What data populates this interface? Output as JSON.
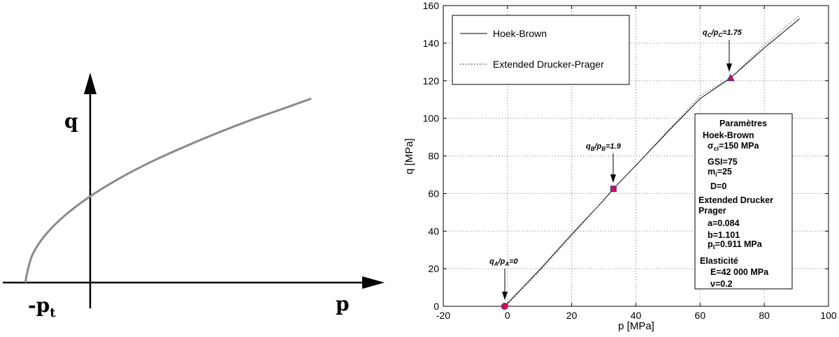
{
  "chart_data": [
    {
      "type": "line",
      "title": "",
      "xlabel": "p",
      "ylabel": "q",
      "intercept_label": "-p",
      "intercept_label_sub": "t",
      "series": [
        {
          "x": [
            -1.0,
            -0.9,
            -0.7,
            -0.4,
            0,
            0.5,
            1.0,
            1.5,
            2.0,
            2.5,
            3.0,
            3.4
          ],
          "y": [
            0,
            0.25,
            0.45,
            0.64,
            0.83,
            1.02,
            1.18,
            1.32,
            1.45,
            1.57,
            1.68,
            1.77
          ]
        }
      ]
    },
    {
      "type": "line",
      "title": "",
      "xlabel": "p [MPa]",
      "ylabel": "q [MPa]",
      "xlim": [
        -20,
        100
      ],
      "ylim": [
        0,
        160
      ],
      "xticks": [
        -20,
        0,
        20,
        40,
        60,
        80,
        100
      ],
      "yticks": [
        0,
        20,
        40,
        60,
        80,
        100,
        120,
        140,
        160
      ],
      "grid": true,
      "legend_position": "top-left",
      "series": [
        {
          "name": "Hoek-Brown",
          "style": "solid",
          "x": [
            -0.9,
            0,
            5,
            10,
            20,
            30,
            33,
            40,
            50,
            60,
            69.5,
            80,
            91
          ],
          "y": [
            0,
            1.6,
            10.5,
            19.4,
            38.3,
            56.5,
            62.5,
            75,
            93,
            110.5,
            121.5,
            137.5,
            153
          ]
        },
        {
          "name": "Extended Drucker-Prager",
          "style": "dotted",
          "x": [
            -0.9,
            0,
            10,
            20,
            33,
            40,
            50,
            60,
            69.5,
            80,
            91
          ],
          "y": [
            0,
            1.0,
            18.6,
            37.5,
            62.5,
            75,
            93.5,
            112,
            121.5,
            139,
            155
          ]
        }
      ],
      "markers": [
        {
          "x": -0.9,
          "y": 0,
          "shape": "circle",
          "label": "A",
          "ratio": "0"
        },
        {
          "x": 33,
          "y": 62.5,
          "shape": "square",
          "label": "B",
          "ratio": "1.9"
        },
        {
          "x": 69.5,
          "y": 121.5,
          "shape": "triangle",
          "label": "C",
          "ratio": "1.75"
        }
      ],
      "annotations": {
        "q": "q",
        "p": "p",
        "A": {
          "sub": "A",
          "value": "=0"
        },
        "B": {
          "sub": "B",
          "value": "=1.9"
        },
        "C": {
          "sub": "C",
          "value": "=1.75"
        }
      },
      "params_box": {
        "title": "Paramètres",
        "hb_title": "Hoek-Brown",
        "sigma": "σ",
        "sigma_sub": "ci",
        "sigma_val": "=150 MPa",
        "gsi": "GSI=75",
        "mi": "m",
        "mi_sub": "i",
        "mi_val": "=25",
        "d": "D=0",
        "edp_title1": "Extended Drucker",
        "edp_title2": "Prager",
        "a": "a=0.084",
        "b": "b=1.101",
        "pt": "p",
        "pt_sub": "t",
        "pt_val": "=0.911 MPa",
        "el_title": "Elasticité",
        "e": "E=42 000 MPa",
        "nu": "ν=0.2"
      }
    }
  ]
}
